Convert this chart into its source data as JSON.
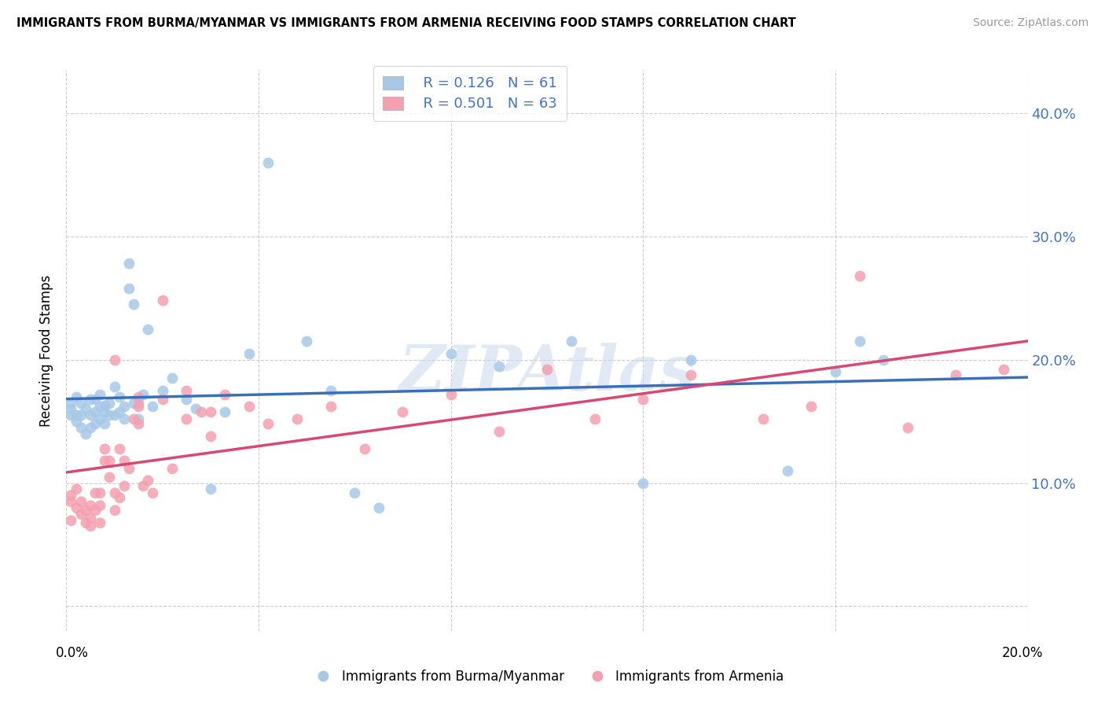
{
  "title": "IMMIGRANTS FROM BURMA/MYANMAR VS IMMIGRANTS FROM ARMENIA RECEIVING FOOD STAMPS CORRELATION CHART",
  "source": "Source: ZipAtlas.com",
  "ylabel": "Receiving Food Stamps",
  "xlim": [
    0.0,
    0.2
  ],
  "ylim": [
    -0.02,
    0.435
  ],
  "yticks": [
    0.0,
    0.1,
    0.2,
    0.3,
    0.4
  ],
  "ytick_labels": [
    "",
    "10.0%",
    "20.0%",
    "30.0%",
    "40.0%"
  ],
  "xticks": [
    0.0,
    0.04,
    0.08,
    0.12,
    0.16,
    0.2
  ],
  "legend_r_blue": "R = 0.126",
  "legend_n_blue": "N = 61",
  "legend_r_pink": "R = 0.501",
  "legend_n_pink": "N = 63",
  "legend_label_blue": "Immigrants from Burma/Myanmar",
  "legend_label_pink": "Immigrants from Armenia",
  "blue_color": "#a8c8e8",
  "pink_color": "#f4a0b0",
  "blue_line_color": "#3a6fba",
  "pink_line_color": "#d94870",
  "watermark": "ZIPAtlas",
  "blue_x": [
    0.001,
    0.001,
    0.001,
    0.002,
    0.002,
    0.002,
    0.003,
    0.003,
    0.003,
    0.004,
    0.004,
    0.005,
    0.005,
    0.005,
    0.006,
    0.006,
    0.006,
    0.007,
    0.007,
    0.007,
    0.008,
    0.008,
    0.008,
    0.009,
    0.009,
    0.01,
    0.01,
    0.011,
    0.011,
    0.012,
    0.012,
    0.013,
    0.013,
    0.014,
    0.014,
    0.015,
    0.015,
    0.016,
    0.017,
    0.018,
    0.02,
    0.022,
    0.025,
    0.027,
    0.03,
    0.033,
    0.038,
    0.042,
    0.05,
    0.055,
    0.06,
    0.065,
    0.08,
    0.09,
    0.105,
    0.12,
    0.13,
    0.15,
    0.16,
    0.165,
    0.17
  ],
  "blue_y": [
    0.155,
    0.16,
    0.165,
    0.15,
    0.155,
    0.17,
    0.145,
    0.155,
    0.165,
    0.14,
    0.16,
    0.145,
    0.155,
    0.168,
    0.148,
    0.158,
    0.168,
    0.152,
    0.162,
    0.172,
    0.148,
    0.158,
    0.163,
    0.155,
    0.165,
    0.155,
    0.178,
    0.158,
    0.17,
    0.152,
    0.162,
    0.258,
    0.278,
    0.245,
    0.165,
    0.152,
    0.165,
    0.172,
    0.225,
    0.162,
    0.175,
    0.185,
    0.168,
    0.16,
    0.095,
    0.158,
    0.205,
    0.36,
    0.215,
    0.175,
    0.092,
    0.08,
    0.205,
    0.195,
    0.215,
    0.1,
    0.2,
    0.11,
    0.19,
    0.215,
    0.2
  ],
  "pink_x": [
    0.001,
    0.001,
    0.001,
    0.002,
    0.002,
    0.003,
    0.003,
    0.004,
    0.004,
    0.005,
    0.005,
    0.005,
    0.006,
    0.006,
    0.007,
    0.007,
    0.007,
    0.008,
    0.008,
    0.009,
    0.009,
    0.01,
    0.01,
    0.011,
    0.011,
    0.012,
    0.012,
    0.013,
    0.014,
    0.015,
    0.015,
    0.016,
    0.017,
    0.018,
    0.02,
    0.022,
    0.025,
    0.028,
    0.03,
    0.033,
    0.038,
    0.042,
    0.048,
    0.055,
    0.062,
    0.07,
    0.08,
    0.09,
    0.1,
    0.11,
    0.12,
    0.13,
    0.145,
    0.155,
    0.165,
    0.175,
    0.185,
    0.195,
    0.01,
    0.015,
    0.02,
    0.025,
    0.03
  ],
  "pink_y": [
    0.09,
    0.085,
    0.07,
    0.095,
    0.08,
    0.075,
    0.085,
    0.078,
    0.068,
    0.082,
    0.072,
    0.065,
    0.092,
    0.078,
    0.068,
    0.082,
    0.092,
    0.128,
    0.118,
    0.105,
    0.118,
    0.092,
    0.078,
    0.088,
    0.128,
    0.118,
    0.098,
    0.112,
    0.152,
    0.162,
    0.148,
    0.098,
    0.102,
    0.092,
    0.168,
    0.112,
    0.152,
    0.158,
    0.138,
    0.172,
    0.162,
    0.148,
    0.152,
    0.162,
    0.128,
    0.158,
    0.172,
    0.142,
    0.192,
    0.152,
    0.168,
    0.188,
    0.152,
    0.162,
    0.268,
    0.145,
    0.188,
    0.192,
    0.2,
    0.17,
    0.248,
    0.175,
    0.158
  ]
}
